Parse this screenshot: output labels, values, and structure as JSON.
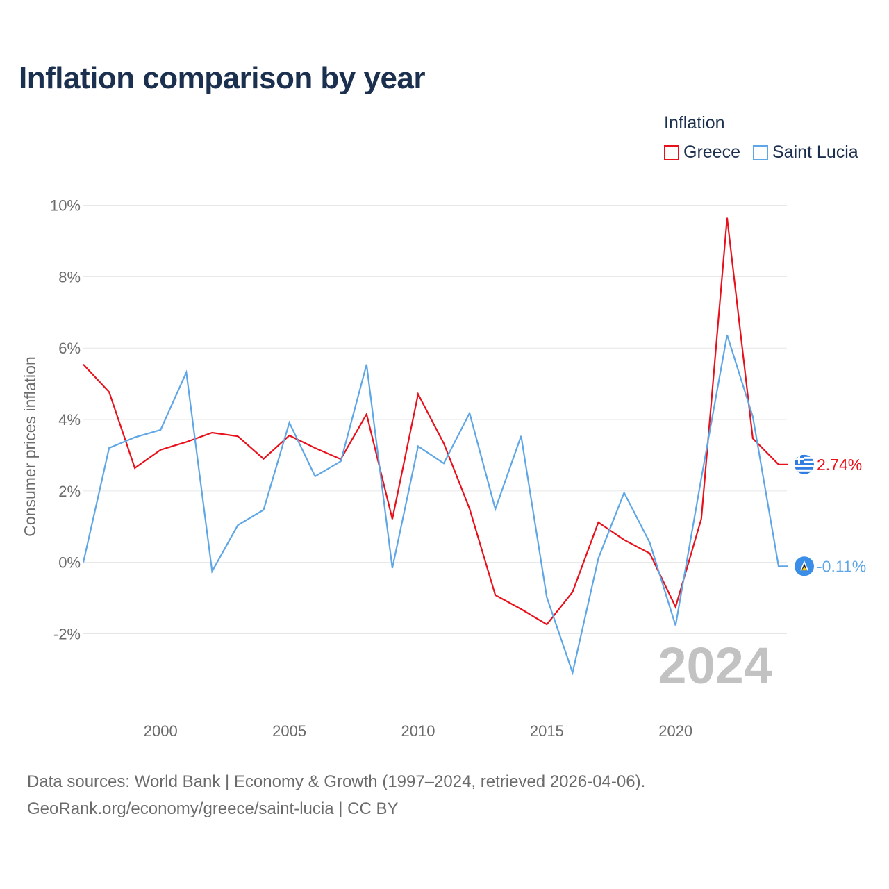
{
  "title": "Inflation comparison by year",
  "legend": {
    "title": "Inflation",
    "items": [
      {
        "label": "Greece",
        "color": "#e8101b"
      },
      {
        "label": "Saint Lucia",
        "color": "#5ea6e6"
      }
    ]
  },
  "chart_data": {
    "type": "line",
    "title": "Inflation comparison by year",
    "xlabel": "",
    "ylabel": "Consumer prices inflation",
    "xlim": [
      1997,
      2024
    ],
    "ylim": [
      -3.8,
      10.4
    ],
    "x": [
      1997,
      1998,
      1999,
      2000,
      2001,
      2002,
      2003,
      2004,
      2005,
      2006,
      2007,
      2008,
      2009,
      2010,
      2011,
      2012,
      2013,
      2014,
      2015,
      2016,
      2017,
      2018,
      2019,
      2020,
      2021,
      2022,
      2023,
      2024
    ],
    "y_ticks": [
      {
        "value": 10,
        "label": "10%"
      },
      {
        "value": 8,
        "label": "8%"
      },
      {
        "value": 6,
        "label": "6%"
      },
      {
        "value": 4,
        "label": "4%"
      },
      {
        "value": 2,
        "label": "2%"
      },
      {
        "value": 0,
        "label": "0%"
      },
      {
        "value": -2,
        "label": "-2%"
      }
    ],
    "x_ticks": [
      {
        "value": 2000,
        "label": "2000"
      },
      {
        "value": 2005,
        "label": "2005"
      },
      {
        "value": 2010,
        "label": "2010"
      },
      {
        "value": 2015,
        "label": "2015"
      },
      {
        "value": 2020,
        "label": "2020"
      }
    ],
    "grid": true,
    "series": [
      {
        "name": "Greece",
        "color": "#e8101b",
        "values": [
          5.54,
          4.77,
          2.64,
          3.15,
          3.37,
          3.63,
          3.53,
          2.9,
          3.55,
          3.2,
          2.89,
          4.15,
          1.21,
          4.71,
          3.33,
          1.5,
          -0.92,
          -1.31,
          -1.74,
          -0.83,
          1.12,
          0.63,
          0.25,
          -1.25,
          1.22,
          9.65,
          3.47,
          2.74
        ],
        "end_label": "2.74%"
      },
      {
        "name": "Saint Lucia",
        "color": "#5ea6e6",
        "values": [
          0.0,
          3.2,
          3.5,
          3.71,
          5.32,
          -0.25,
          1.04,
          1.47,
          3.91,
          2.41,
          2.83,
          5.54,
          -0.16,
          3.25,
          2.77,
          4.18,
          1.49,
          3.54,
          -0.98,
          -3.09,
          0.11,
          1.95,
          0.55,
          -1.77,
          2.36,
          6.37,
          4.08,
          -0.11
        ],
        "end_label": "-0.11%"
      }
    ],
    "annotation": "2024"
  },
  "footer": {
    "line1": "Data sources: World Bank | Economy & Growth (1997–2024, retrieved 2026-04-06).",
    "line2": "GeoRank.org/economy/greece/saint-lucia | CC BY"
  }
}
